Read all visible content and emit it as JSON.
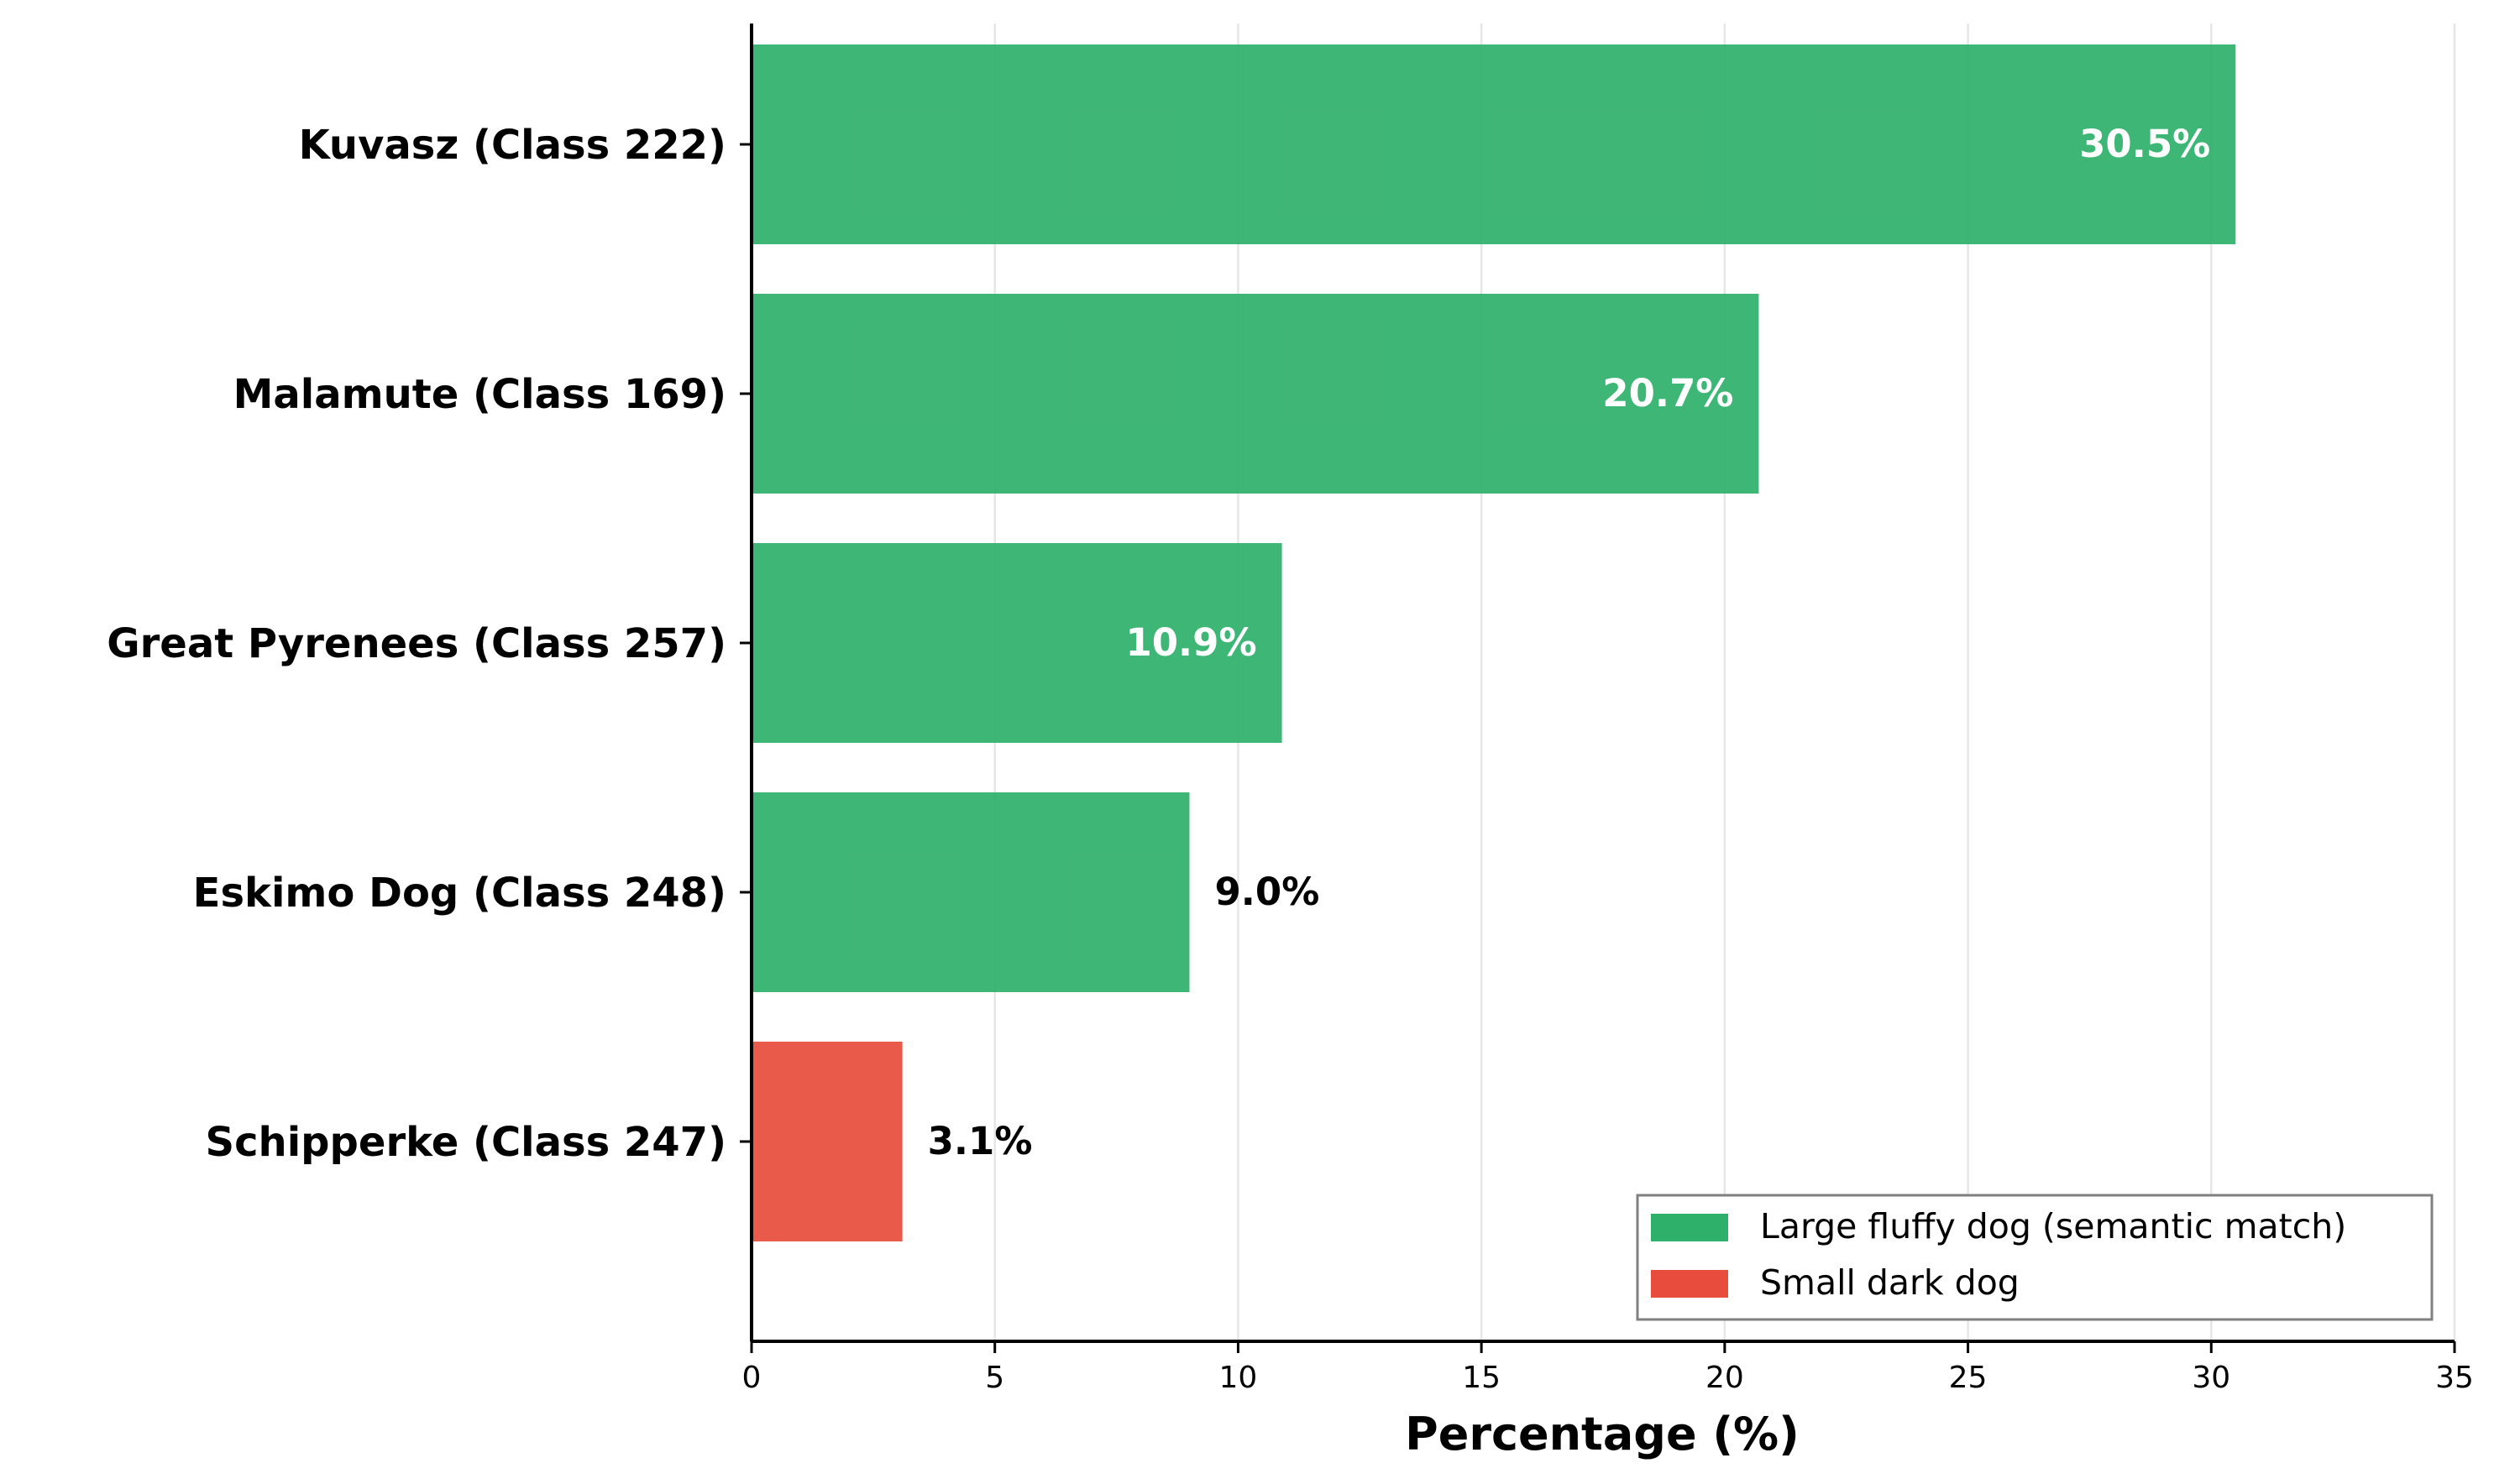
{
  "chart_data": {
    "type": "bar",
    "orientation": "horizontal",
    "categories": [
      "Kuvasz (Class 222)",
      "Malamute (Class 169)",
      "Great Pyrenees (Class 257)",
      "Eskimo Dog (Class 248)",
      "Schipperke (Class 247)"
    ],
    "values": [
      30.5,
      20.7,
      10.9,
      9.0,
      3.1
    ],
    "value_labels": [
      "30.5%",
      "20.7%",
      "10.9%",
      "9.0%",
      "3.1%"
    ],
    "groups": [
      "Large fluffy dog (semantic match)",
      "Large fluffy dog (semantic match)",
      "Large fluffy dog (semantic match)",
      "Large fluffy dog (semantic match)",
      "Small dark dog"
    ],
    "legend": {
      "position": "lower-right",
      "entries": [
        {
          "label": "Large fluffy dog (semantic match)",
          "color": "#2eb06a"
        },
        {
          "label": "Small dark dog",
          "color": "#e74c3c"
        }
      ]
    },
    "xlabel": "Percentage (%)",
    "ylabel": "",
    "title": "",
    "xlim": [
      0,
      35
    ],
    "xticks": [
      0,
      5,
      10,
      15,
      20,
      25,
      30,
      35
    ],
    "grid": "x-major"
  }
}
